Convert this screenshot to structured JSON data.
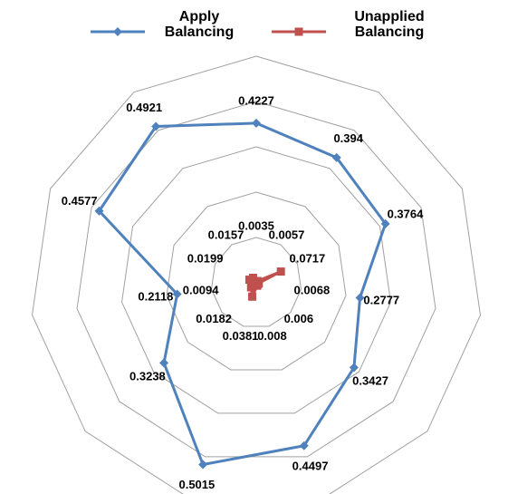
{
  "chart_data": {
    "type": "radar",
    "ylim": [
      0,
      0.6
    ],
    "yticks": [
      0.12,
      0.24,
      0.36,
      0.48,
      0.6
    ],
    "grid": true,
    "legend": "top",
    "series": [
      {
        "name": "Apply Balancing",
        "color": "#4f81bd",
        "marker": "diamond",
        "values": [
          0.4227,
          0.394,
          0.3764,
          0.2777,
          0.3427,
          0.4497,
          0.5015,
          0.3238,
          0.2118,
          0.4577,
          0.4921
        ]
      },
      {
        "name": "Unapplied Balancing",
        "color": "#c0504d",
        "marker": "square",
        "values": [
          0.0035,
          0.0057,
          0.0717,
          0.0068,
          0.006,
          0.008,
          0.0381,
          0.0182,
          0.0094,
          0.0199,
          0.0157
        ]
      }
    ]
  }
}
